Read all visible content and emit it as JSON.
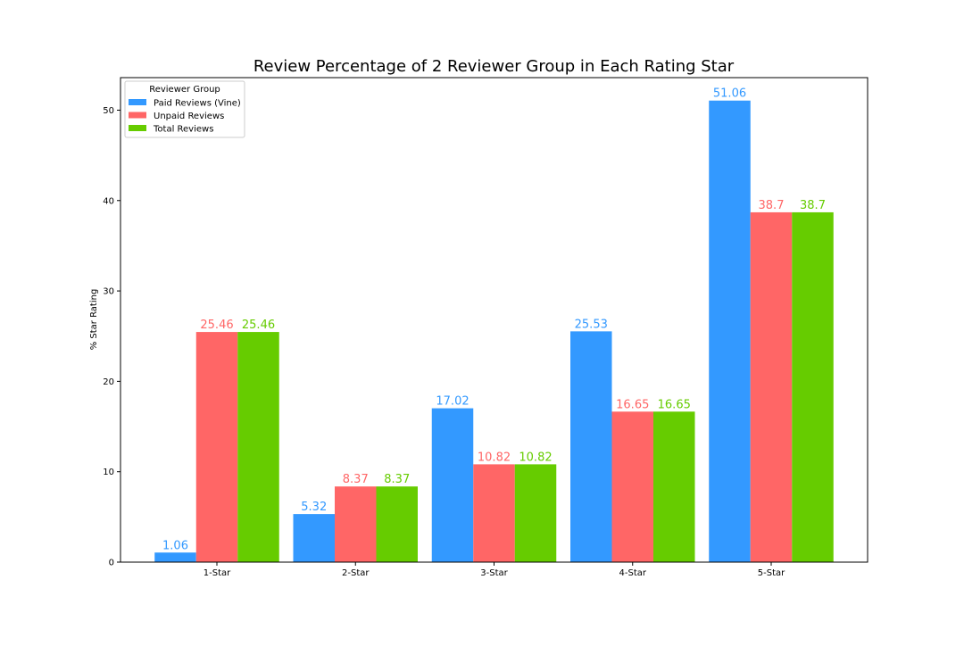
{
  "chart_data": {
    "type": "bar",
    "title": "Review Percentage of 2 Reviewer Group in Each Rating Star",
    "xlabel": "",
    "ylabel": "% Star Rating",
    "categories": [
      "1-Star",
      "2-Star",
      "3-Star",
      "4-Star",
      "5-Star"
    ],
    "series": [
      {
        "name": "Paid Reviews (Vine)",
        "color": "#3399ff",
        "values": [
          1.06,
          5.32,
          17.02,
          25.53,
          51.06
        ]
      },
      {
        "name": "Unpaid Reviews",
        "color": "#ff6666",
        "values": [
          25.46,
          8.37,
          10.82,
          16.65,
          38.7
        ]
      },
      {
        "name": "Total Reviews",
        "color": "#66cc00",
        "values": [
          25.46,
          8.37,
          10.82,
          16.65,
          38.7
        ]
      }
    ],
    "ylim": [
      0,
      53.6
    ],
    "yticks": [
      0,
      10,
      20,
      30,
      40,
      50
    ],
    "legend": {
      "title": "Reviewer Group",
      "placement": "top-left"
    },
    "grid": false
  }
}
